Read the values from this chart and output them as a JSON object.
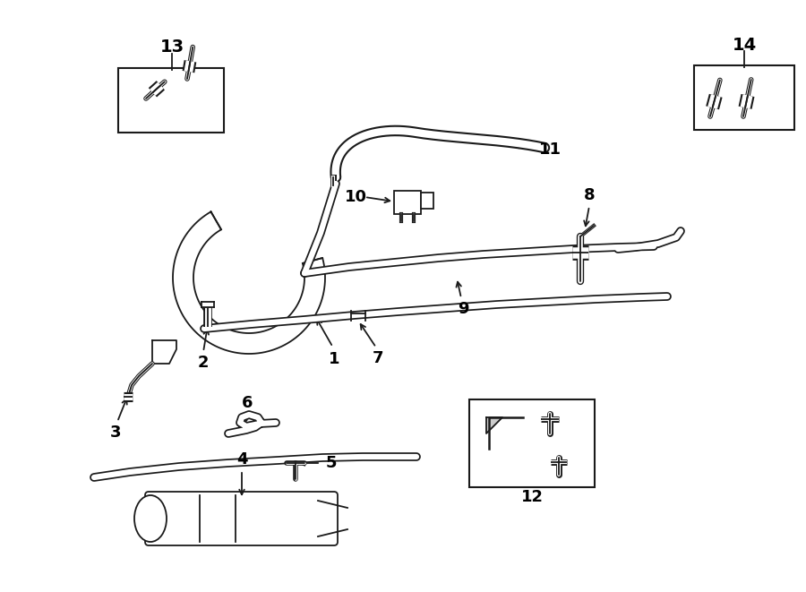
{
  "bg_color": "#ffffff",
  "line_color": "#1a1a1a",
  "lw": 1.3,
  "lw_pipe": 7,
  "lw_pipe_inner": 4.5,
  "figsize": [
    9.0,
    6.61
  ],
  "dpi": 100
}
